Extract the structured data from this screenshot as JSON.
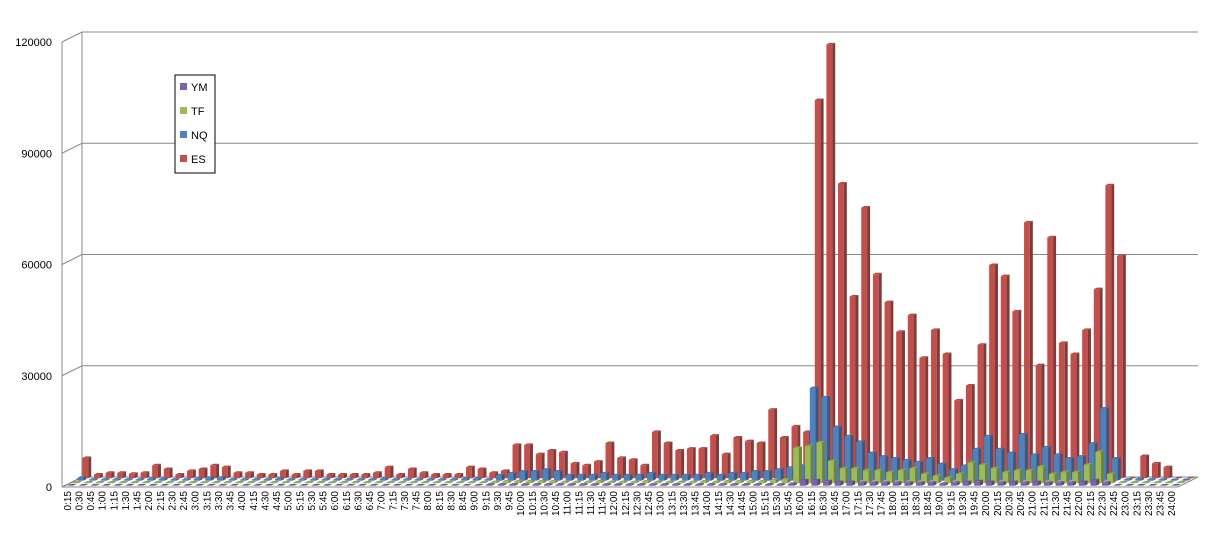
{
  "chart_data": {
    "type": "bar3d",
    "categories": [
      "0:15",
      "0:30",
      "0:45",
      "1:00",
      "1:15",
      "1:30",
      "1:45",
      "2:00",
      "2:15",
      "2:30",
      "2:45",
      "3:00",
      "3:15",
      "3:30",
      "3:45",
      "4:00",
      "4:15",
      "4:30",
      "4:45",
      "5:00",
      "5:15",
      "5:30",
      "5:45",
      "6:00",
      "6:15",
      "6:30",
      "6:45",
      "7:00",
      "7:15",
      "7:30",
      "7:45",
      "8:00",
      "8:15",
      "8:30",
      "8:45",
      "9:00",
      "9:15",
      "9:30",
      "9:45",
      "10:00",
      "10:15",
      "10:30",
      "10:45",
      "11:00",
      "11:15",
      "11:30",
      "11:45",
      "12:00",
      "12:15",
      "12:30",
      "12:45",
      "13:00",
      "13:15",
      "13:30",
      "13:45",
      "14:00",
      "14:15",
      "14:30",
      "14:45",
      "15:00",
      "15:15",
      "15:30",
      "15:45",
      "16:00",
      "16:15",
      "16:30",
      "16:45",
      "17:00",
      "17:15",
      "17:30",
      "17:45",
      "18:00",
      "18:15",
      "18:30",
      "18:45",
      "19:00",
      "19:15",
      "19:30",
      "19:45",
      "20:00",
      "20:15",
      "20:30",
      "20:45",
      "21:00",
      "21:15",
      "21:30",
      "21:45",
      "22:00",
      "22:15",
      "22:30",
      "22:45",
      "23:00",
      "23:15",
      "23:30",
      "23:45",
      "24:00"
    ],
    "series": [
      {
        "name": "YM",
        "color": "#7e62a6",
        "values": [
          100,
          100,
          100,
          100,
          100,
          100,
          100,
          100,
          100,
          100,
          100,
          100,
          100,
          100,
          100,
          100,
          100,
          100,
          100,
          100,
          100,
          100,
          100,
          100,
          100,
          100,
          100,
          100,
          100,
          100,
          100,
          100,
          100,
          100,
          100,
          100,
          300,
          300,
          300,
          300,
          300,
          300,
          300,
          300,
          300,
          300,
          300,
          300,
          300,
          300,
          300,
          300,
          300,
          300,
          300,
          300,
          300,
          300,
          300,
          300,
          300,
          300,
          500,
          1500,
          1500,
          1200,
          1000,
          1000,
          800,
          800,
          800,
          800,
          800,
          800,
          800,
          500,
          800,
          1000,
          1200,
          1000,
          800,
          1000,
          800,
          1000,
          800,
          800,
          800,
          1000,
          1500,
          800,
          100,
          100,
          100,
          100,
          100,
          100
        ]
      },
      {
        "name": "TF",
        "color": "#9bbb59",
        "values": [
          200,
          200,
          200,
          200,
          200,
          200,
          200,
          200,
          200,
          200,
          200,
          200,
          200,
          200,
          200,
          200,
          200,
          200,
          200,
          200,
          200,
          200,
          200,
          200,
          200,
          200,
          200,
          200,
          200,
          200,
          200,
          200,
          200,
          200,
          200,
          200,
          300,
          500,
          500,
          500,
          500,
          500,
          300,
          300,
          300,
          500,
          300,
          300,
          300,
          500,
          300,
          300,
          300,
          300,
          500,
          300,
          500,
          500,
          500,
          500,
          800,
          1000,
          9500,
          10000,
          11000,
          6000,
          4000,
          4000,
          3500,
          3500,
          3000,
          3500,
          4000,
          2500,
          2000,
          1500,
          2500,
          5500,
          5000,
          4000,
          3000,
          3500,
          3500,
          4500,
          2500,
          3000,
          3000,
          5000,
          8500,
          2500,
          200,
          200,
          200,
          200,
          200,
          200
        ]
      },
      {
        "name": "NQ",
        "color": "#4f81bd",
        "values": [
          800,
          300,
          300,
          300,
          300,
          300,
          500,
          500,
          300,
          300,
          500,
          800,
          800,
          300,
          300,
          300,
          300,
          500,
          300,
          300,
          300,
          300,
          300,
          300,
          300,
          300,
          500,
          300,
          300,
          300,
          300,
          300,
          300,
          500,
          500,
          300,
          1500,
          2000,
          2500,
          2500,
          3000,
          2500,
          1500,
          1500,
          1500,
          2000,
          1500,
          1500,
          1500,
          2000,
          1500,
          1500,
          1500,
          1500,
          2000,
          1500,
          2000,
          2000,
          2500,
          2500,
          3000,
          3500,
          4000,
          25000,
          22500,
          14500,
          12000,
          10500,
          7500,
          6500,
          6000,
          5500,
          5000,
          6000,
          4500,
          3000,
          4000,
          8500,
          12000,
          8500,
          7500,
          12500,
          7000,
          9000,
          7000,
          6000,
          6500,
          10000,
          19500,
          6000,
          300,
          500,
          300,
          300,
          200,
          200
        ]
      },
      {
        "name": "ES",
        "color": "#c0504d",
        "values": [
          5500,
          1000,
          1500,
          1500,
          1200,
          1500,
          3500,
          2500,
          1000,
          2000,
          2500,
          3500,
          3000,
          1500,
          1500,
          1000,
          1000,
          2000,
          1000,
          2000,
          2000,
          1000,
          1000,
          1000,
          1000,
          1500,
          3000,
          1000,
          2500,
          1500,
          1000,
          1000,
          1000,
          3000,
          2500,
          1500,
          2000,
          9000,
          9000,
          6500,
          7500,
          7000,
          4000,
          3500,
          4500,
          9500,
          5500,
          5000,
          3500,
          12500,
          9500,
          7500,
          8000,
          8000,
          11500,
          6500,
          11000,
          10000,
          9500,
          18500,
          11000,
          14000,
          12500,
          102000,
          117000,
          79500,
          49000,
          73000,
          55000,
          47500,
          39500,
          44000,
          32500,
          40000,
          33500,
          21000,
          25000,
          36000,
          57500,
          54500,
          45000,
          69000,
          30500,
          65000,
          36500,
          33500,
          40000,
          51000,
          79000,
          60000,
          0,
          6000,
          4000,
          3000,
          0,
          0
        ]
      }
    ],
    "ylim": [
      0,
      120000
    ],
    "yticks": [
      0,
      30000,
      60000,
      90000,
      120000
    ],
    "grid": true
  }
}
